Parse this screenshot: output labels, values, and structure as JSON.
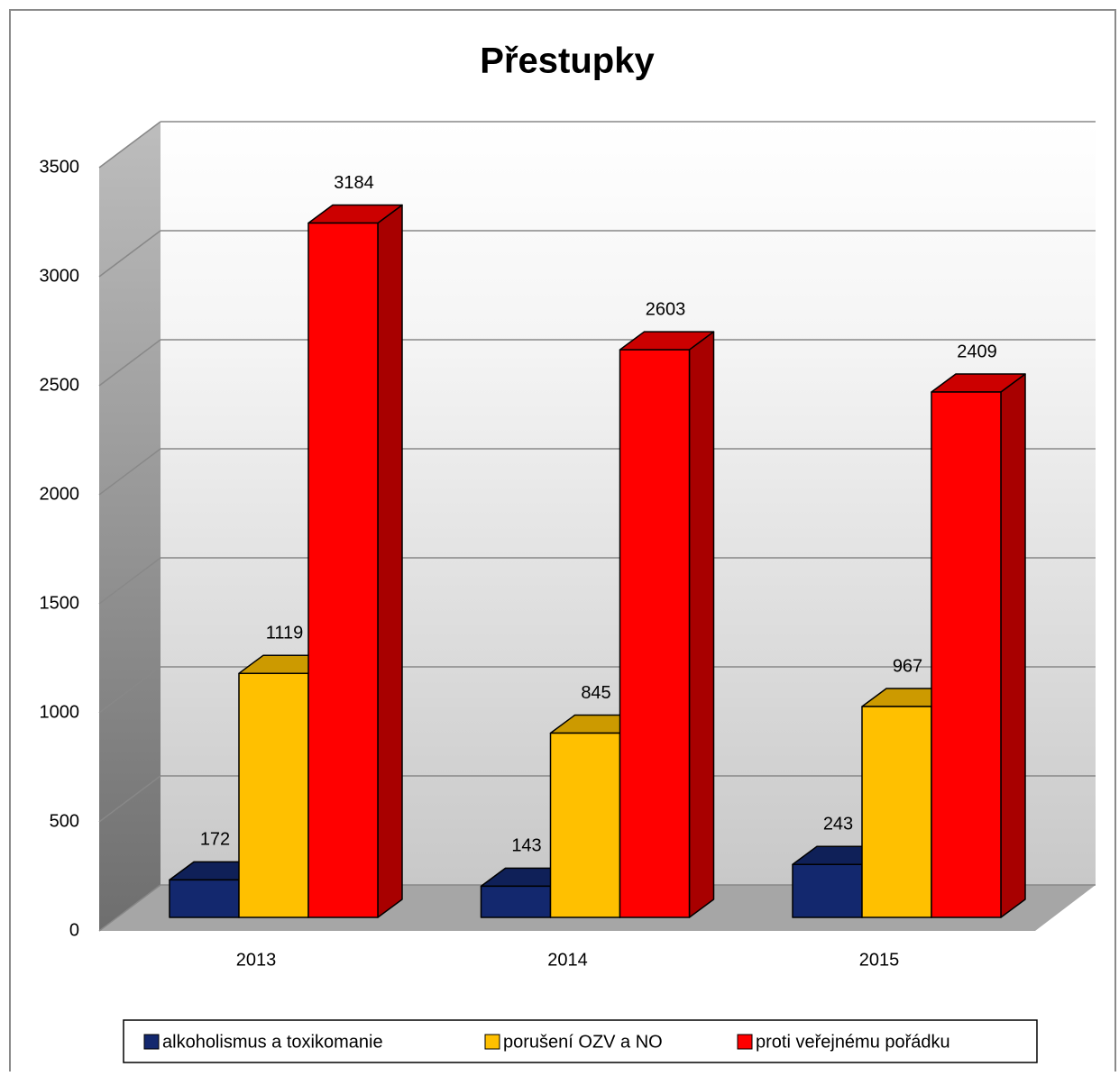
{
  "chart_data": {
    "type": "bar3d",
    "title": "Přestupky",
    "categories": [
      "2013",
      "2014",
      "2015"
    ],
    "series": [
      {
        "name": "alkoholismus a toxikomanie",
        "color": "#13286e",
        "values": [
          172,
          143,
          243
        ]
      },
      {
        "name": "porušení OZV a NO",
        "color": "#ffc000",
        "values": [
          1119,
          845,
          967
        ]
      },
      {
        "name": "proti veřejnému pořádku",
        "color": "#ff0000",
        "values": [
          3184,
          2603,
          2409
        ]
      }
    ],
    "ylim": [
      0,
      3500
    ],
    "yticks": [
      0,
      500,
      1000,
      1500,
      2000,
      2500,
      3000,
      3500
    ],
    "grid": true,
    "legend": "bottom"
  }
}
